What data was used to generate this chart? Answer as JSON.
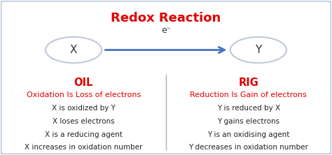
{
  "title": "Redox Reaction",
  "title_color": "#e00000",
  "title_fontsize": 13,
  "background_color": "#ffffff",
  "border_color": "#b0c4d8",
  "arrow_color": "#4472c4",
  "circle_color": "#c0c8d8",
  "electron_label": "e⁻",
  "x_label": "X",
  "y_label": "Y",
  "divider_color": "#b0b0b0",
  "oil_title": "OIL",
  "rig_title": "RIG",
  "oil_title_color": "#e00000",
  "rig_title_color": "#e00000",
  "oil_subtitle": "Oxidation Is Loss of electrons",
  "rig_subtitle": "Reduction Is Gain of electrons",
  "oil_subtitle_color": "#e00000",
  "rig_subtitle_color": "#e00000",
  "oil_lines": [
    "X is oxidized by Y",
    "X loses electrons",
    "X is a reducing agent",
    "X increases in oxidation number"
  ],
  "rig_lines": [
    "Y is reduced by X",
    "Y gains electrons",
    "Y is an oxidising agent",
    "Y decreases in oxidation number"
  ],
  "body_text_color": "#222222",
  "body_fontsize": 7.5,
  "subtitle_fontsize": 8.0,
  "heading_fontsize": 10.5
}
